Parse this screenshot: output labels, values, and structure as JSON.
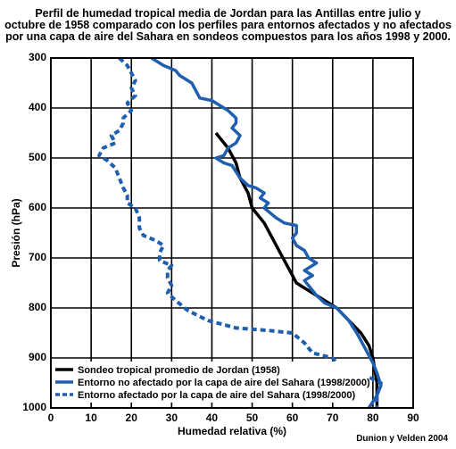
{
  "chart_data": {
    "type": "line",
    "title_lines": [
      "Perfil de humedad tropical media de Jordan para las Antillas entre julio y",
      "octubre de 1958 comparado con los perfiles para entornos afectados y no afectados",
      "por una capa de aire del Sahara en sondeos compuestos para los años 1998 y 2000."
    ],
    "xlabel": "Humedad relativa (%)",
    "ylabel": "Presión (hPa)",
    "xlim": [
      0,
      90
    ],
    "ylim": [
      300,
      1000
    ],
    "y_inverted": true,
    "grid": true,
    "x_ticks": [
      "0",
      "10",
      "20",
      "30",
      "40",
      "50",
      "60",
      "70",
      "80",
      "90"
    ],
    "y_ticks": [
      "300",
      "400",
      "500",
      "600",
      "700",
      "800",
      "900",
      "1000"
    ],
    "legend_position": "bottom-left",
    "series": [
      {
        "name": "Sondeo tropical promedio de Jordan (1958)",
        "color": "#000000",
        "style": "solid",
        "points": [
          [
            41,
            450
          ],
          [
            44,
            480
          ],
          [
            46,
            510
          ],
          [
            47,
            540
          ],
          [
            49,
            570
          ],
          [
            50,
            600
          ],
          [
            53,
            630
          ],
          [
            55,
            660
          ],
          [
            57,
            690
          ],
          [
            59,
            720
          ],
          [
            61,
            750
          ],
          [
            66,
            775
          ],
          [
            71,
            800
          ],
          [
            74,
            825
          ],
          [
            77,
            850
          ],
          [
            79,
            875
          ],
          [
            80,
            900
          ],
          [
            81,
            950
          ],
          [
            81,
            1000
          ]
        ]
      },
      {
        "name": "Entorno no afectado por la capa de aire del Sahara (1998/2000)",
        "color": "#1f5fb0",
        "style": "solid",
        "points": [
          [
            25,
            300
          ],
          [
            28,
            315
          ],
          [
            31,
            325
          ],
          [
            32,
            335
          ],
          [
            35,
            350
          ],
          [
            36,
            365
          ],
          [
            37,
            380
          ],
          [
            40,
            385
          ],
          [
            42,
            395
          ],
          [
            44,
            405
          ],
          [
            46,
            420
          ],
          [
            46,
            430
          ],
          [
            45,
            440
          ],
          [
            47,
            455
          ],
          [
            46,
            470
          ],
          [
            44,
            480
          ],
          [
            43,
            495
          ],
          [
            41,
            500
          ],
          [
            43,
            510
          ],
          [
            45,
            515
          ],
          [
            47,
            540
          ],
          [
            49,
            555
          ],
          [
            51,
            560
          ],
          [
            53,
            570
          ],
          [
            52,
            580
          ],
          [
            54,
            590
          ],
          [
            53,
            600
          ],
          [
            56,
            620
          ],
          [
            58,
            630
          ],
          [
            61,
            635
          ],
          [
            61,
            650
          ],
          [
            60,
            660
          ],
          [
            61,
            675
          ],
          [
            63,
            685
          ],
          [
            64,
            700
          ],
          [
            66,
            710
          ],
          [
            64,
            720
          ],
          [
            63,
            725
          ],
          [
            65,
            735
          ],
          [
            63,
            745
          ],
          [
            65,
            765
          ],
          [
            66,
            775
          ],
          [
            68,
            790
          ],
          [
            71,
            800
          ],
          [
            74,
            825
          ],
          [
            76,
            850
          ],
          [
            78,
            880
          ],
          [
            80,
            910
          ],
          [
            81,
            930
          ],
          [
            82,
            955
          ],
          [
            81,
            975
          ],
          [
            79,
            1000
          ]
        ]
      },
      {
        "name": "Entorno afectado por la capa de aire del Sahara (1998/2000)",
        "color": "#1f5fb0",
        "style": "dashed",
        "points": [
          [
            17,
            300
          ],
          [
            19,
            315
          ],
          [
            20,
            330
          ],
          [
            21,
            345
          ],
          [
            20,
            360
          ],
          [
            21,
            375
          ],
          [
            19,
            390
          ],
          [
            20,
            405
          ],
          [
            18,
            420
          ],
          [
            18,
            430
          ],
          [
            17,
            445
          ],
          [
            15,
            455
          ],
          [
            16,
            470
          ],
          [
            13,
            480
          ],
          [
            12,
            495
          ],
          [
            14,
            505
          ],
          [
            16,
            520
          ],
          [
            17,
            540
          ],
          [
            18,
            560
          ],
          [
            19,
            575
          ],
          [
            19,
            590
          ],
          [
            21,
            600
          ],
          [
            22,
            620
          ],
          [
            22,
            640
          ],
          [
            23,
            655
          ],
          [
            26,
            665
          ],
          [
            28,
            675
          ],
          [
            27,
            690
          ],
          [
            27,
            705
          ],
          [
            30,
            715
          ],
          [
            29,
            725
          ],
          [
            29,
            740
          ],
          [
            30,
            755
          ],
          [
            29,
            770
          ],
          [
            31,
            785
          ],
          [
            34,
            805
          ],
          [
            39,
            825
          ],
          [
            46,
            840
          ],
          [
            54,
            845
          ],
          [
            60,
            850
          ],
          [
            63,
            870
          ],
          [
            65,
            890
          ],
          [
            70,
            900
          ],
          [
            72,
            920
          ],
          [
            78,
            935
          ],
          [
            82,
            950
          ],
          [
            81,
            975
          ],
          [
            81,
            1000
          ]
        ]
      }
    ]
  },
  "credit": "Dunion y Velden 2004"
}
